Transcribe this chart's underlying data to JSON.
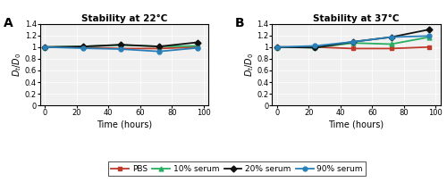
{
  "title_A": "Stability at 22°C",
  "title_B": "Stability at 37°C",
  "xlabel": "Time (hours)",
  "ylabel_t": "D",
  "ylabel_sub": "t",
  "ylabel_full": "$D_t/D_0$",
  "label_A": "A",
  "label_B": "B",
  "time_A": [
    0,
    24,
    48,
    72,
    96
  ],
  "time_B": [
    0,
    24,
    48,
    72,
    96
  ],
  "PBS_A": [
    1.0,
    1.0,
    0.975,
    0.975,
    1.0
  ],
  "serum10_A": [
    1.0,
    1.01,
    1.035,
    1.01,
    1.02
  ],
  "serum20_A": [
    1.0,
    1.01,
    1.04,
    1.01,
    1.08
  ],
  "serum90_A": [
    1.0,
    0.98,
    0.965,
    0.925,
    0.985
  ],
  "PBS_B": [
    1.0,
    1.0,
    0.975,
    0.975,
    1.0
  ],
  "serum10_B": [
    1.0,
    0.99,
    1.07,
    1.05,
    1.17
  ],
  "serum20_B": [
    1.0,
    0.99,
    1.09,
    1.17,
    1.3
  ],
  "serum90_B": [
    1.0,
    1.02,
    1.09,
    1.17,
    1.19
  ],
  "colors": {
    "PBS": "#c0392b",
    "serum10": "#27ae60",
    "serum20": "#111111",
    "serum90": "#2980b9"
  },
  "markers": {
    "PBS": "s",
    "serum10": "^",
    "serum20": "D",
    "serum90": "o"
  },
  "legend_labels": [
    "PBS",
    "10% serum",
    "20% serum",
    "90% serum"
  ],
  "ylim": [
    0,
    1.4
  ],
  "yticks": [
    0,
    0.2,
    0.4,
    0.6,
    0.8,
    1.0,
    1.2,
    1.4
  ],
  "xticks": [
    0,
    20,
    40,
    60,
    80,
    100
  ],
  "xlim": [
    -3,
    103
  ],
  "background_color": "#f0f0f0"
}
